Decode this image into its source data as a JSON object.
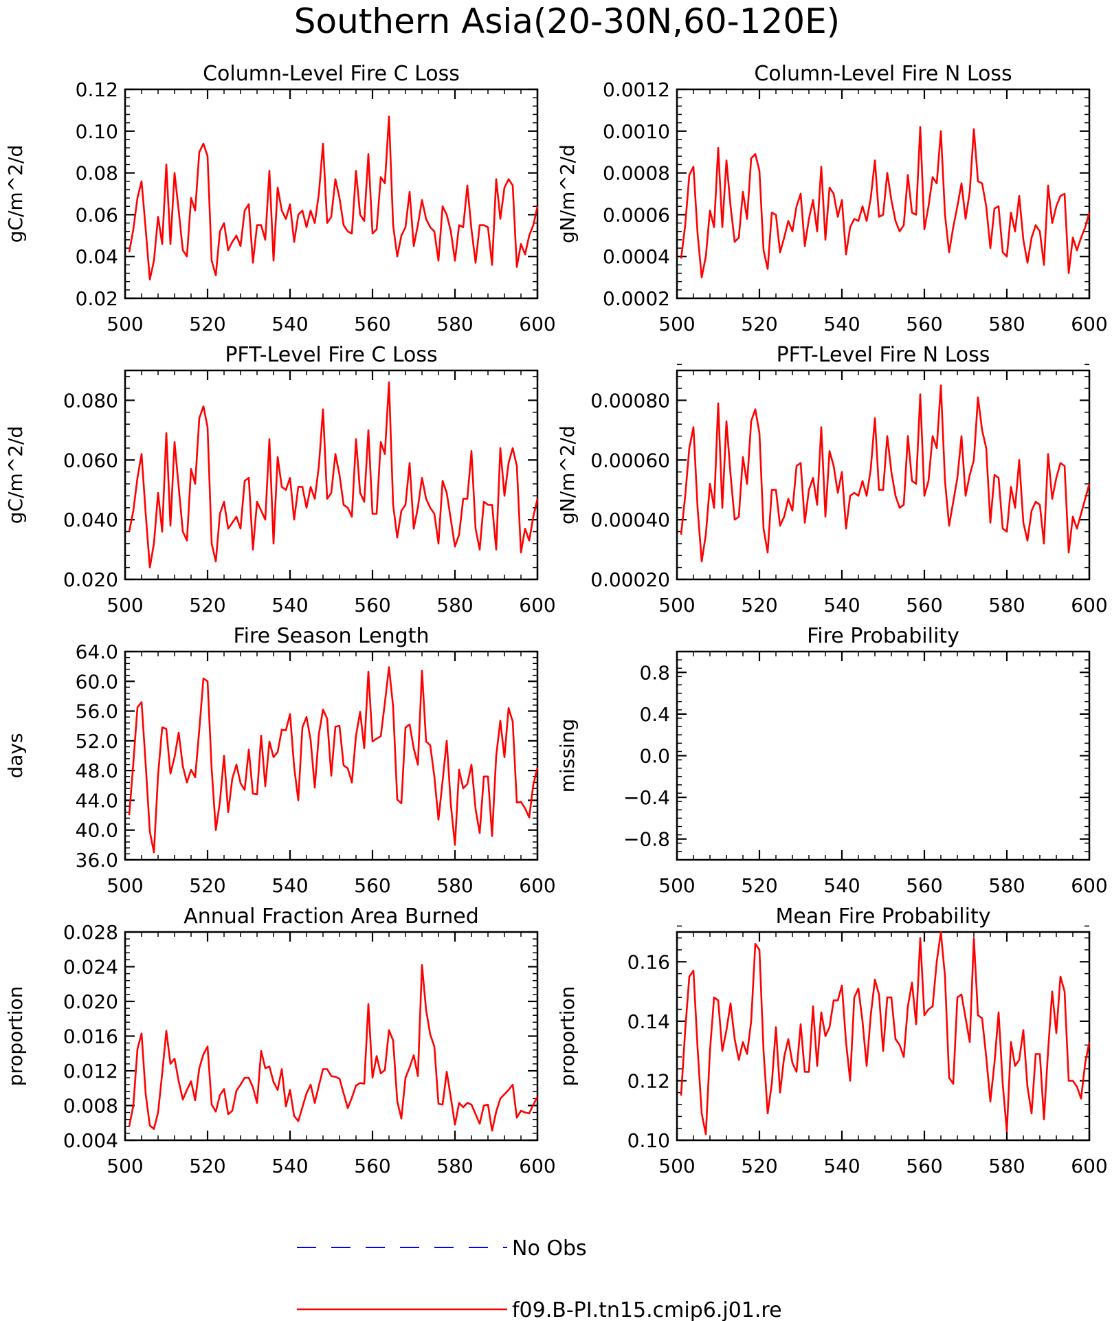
{
  "title": "Southern Asia(20-30N,60-120E)",
  "legend": [
    {
      "label": "No Obs",
      "color": "#0000ff",
      "style": "dashed"
    },
    {
      "label": "f09.B-PI.tn15.cmip6.j01.re",
      "color": "#ff0000",
      "style": "solid"
    }
  ],
  "chart_data": [
    {
      "type": "line",
      "title": "Column-Level Fire C Loss",
      "ylabel": "gC/m^2/d",
      "xlabel": "",
      "xlim": [
        500,
        600
      ],
      "ylim": [
        0.02,
        0.12
      ],
      "xticks": [
        "500",
        "520",
        "540",
        "560",
        "580",
        "600"
      ],
      "yticks": [
        "0.02",
        "0.04",
        "0.06",
        "0.08",
        "0.10",
        "0.12"
      ],
      "series": [
        {
          "name": "f09.B-PI.tn15.cmip6.j01.re",
          "color": "#ff0000",
          "x_start": 501,
          "x_step": 1,
          "values": [
            0.042,
            0.053,
            0.068,
            0.076,
            0.053,
            0.029,
            0.038,
            0.059,
            0.046,
            0.084,
            0.046,
            0.08,
            0.062,
            0.043,
            0.04,
            0.068,
            0.062,
            0.09,
            0.094,
            0.088,
            0.038,
            0.031,
            0.052,
            0.056,
            0.043,
            0.047,
            0.05,
            0.045,
            0.062,
            0.065,
            0.037,
            0.055,
            0.055,
            0.048,
            0.081,
            0.038,
            0.073,
            0.062,
            0.058,
            0.065,
            0.047,
            0.06,
            0.062,
            0.054,
            0.062,
            0.056,
            0.07,
            0.094,
            0.056,
            0.059,
            0.077,
            0.068,
            0.055,
            0.052,
            0.051,
            0.081,
            0.06,
            0.057,
            0.089,
            0.051,
            0.053,
            0.078,
            0.075,
            0.107,
            0.055,
            0.04,
            0.05,
            0.054,
            0.071,
            0.045,
            0.055,
            0.067,
            0.058,
            0.054,
            0.052,
            0.038,
            0.064,
            0.06,
            0.052,
            0.038,
            0.055,
            0.054,
            0.074,
            0.053,
            0.037,
            0.055,
            0.055,
            0.054,
            0.036,
            0.077,
            0.058,
            0.073,
            0.077,
            0.074,
            0.035,
            0.046,
            0.041,
            0.05,
            0.055,
            0.064
          ]
        }
      ]
    },
    {
      "type": "line",
      "title": "Column-Level Fire N Loss",
      "ylabel": "gN/m^2/d",
      "xlabel": "",
      "xlim": [
        500,
        600
      ],
      "ylim": [
        0.0002,
        0.0012
      ],
      "xticks": [
        "500",
        "520",
        "540",
        "560",
        "580",
        "600"
      ],
      "yticks": [
        "0.0002",
        "0.0004",
        "0.0006",
        "0.0008",
        "0.0010",
        "0.0012"
      ],
      "series": [
        {
          "name": "f09.B-PI.tn15.cmip6.j01.re",
          "color": "#ff0000",
          "x_start": 501,
          "x_step": 1,
          "values": [
            0.00039,
            0.00055,
            0.00079,
            0.00083,
            0.00051,
            0.0003,
            0.0004,
            0.00062,
            0.00054,
            0.00092,
            0.00054,
            0.00086,
            0.00064,
            0.00047,
            0.00049,
            0.00071,
            0.00058,
            0.00087,
            0.00089,
            0.00081,
            0.00043,
            0.00034,
            0.00061,
            0.0006,
            0.00042,
            0.00049,
            0.00057,
            0.00052,
            0.00064,
            0.0007,
            0.00045,
            0.00058,
            0.00067,
            0.00052,
            0.00083,
            0.00048,
            0.00073,
            0.0007,
            0.00059,
            0.00067,
            0.00041,
            0.00054,
            0.00058,
            0.00057,
            0.00064,
            0.00057,
            0.00068,
            0.00086,
            0.00059,
            0.0006,
            0.0008,
            0.00067,
            0.00057,
            0.00052,
            0.00055,
            0.00079,
            0.00061,
            0.0006,
            0.00102,
            0.00053,
            0.00064,
            0.00078,
            0.00075,
            0.001,
            0.0006,
            0.00042,
            0.00054,
            0.00064,
            0.00075,
            0.00058,
            0.00071,
            0.00101,
            0.00076,
            0.00075,
            0.00064,
            0.00044,
            0.00063,
            0.00064,
            0.00042,
            0.0004,
            0.00061,
            0.00052,
            0.00069,
            0.00048,
            0.00037,
            0.00049,
            0.00055,
            0.00052,
            0.00036,
            0.00074,
            0.00056,
            0.00064,
            0.00069,
            0.0007,
            0.00032,
            0.00049,
            0.00043,
            0.00049,
            0.00054,
            0.00061
          ]
        }
      ]
    },
    {
      "type": "line",
      "title": "PFT-Level Fire C Loss",
      "ylabel": "gC/m^2/d",
      "xlabel": "",
      "xlim": [
        500,
        600
      ],
      "ylim": [
        0.02,
        0.09
      ],
      "xticks": [
        "500",
        "520",
        "540",
        "560",
        "580",
        "600"
      ],
      "yticks": [
        "0.020",
        "0.040",
        "0.060",
        "0.080"
      ],
      "series": [
        {
          "name": "f09.B-PI.tn15.cmip6.j01.re",
          "color": "#ff0000",
          "x_start": 501,
          "x_step": 1,
          "values": [
            0.036,
            0.043,
            0.054,
            0.062,
            0.042,
            0.024,
            0.032,
            0.049,
            0.036,
            0.069,
            0.038,
            0.066,
            0.051,
            0.036,
            0.033,
            0.057,
            0.052,
            0.074,
            0.078,
            0.071,
            0.032,
            0.026,
            0.042,
            0.046,
            0.037,
            0.039,
            0.041,
            0.037,
            0.053,
            0.054,
            0.03,
            0.046,
            0.043,
            0.04,
            0.067,
            0.032,
            0.061,
            0.051,
            0.05,
            0.054,
            0.04,
            0.051,
            0.051,
            0.044,
            0.051,
            0.047,
            0.058,
            0.077,
            0.047,
            0.049,
            0.062,
            0.055,
            0.045,
            0.044,
            0.041,
            0.067,
            0.049,
            0.046,
            0.07,
            0.042,
            0.042,
            0.066,
            0.062,
            0.086,
            0.045,
            0.034,
            0.043,
            0.045,
            0.059,
            0.037,
            0.044,
            0.054,
            0.047,
            0.044,
            0.042,
            0.032,
            0.053,
            0.049,
            0.04,
            0.031,
            0.035,
            0.047,
            0.047,
            0.063,
            0.037,
            0.03,
            0.046,
            0.045,
            0.045,
            0.03,
            0.064,
            0.048,
            0.059,
            0.064,
            0.058,
            0.029,
            0.037,
            0.033,
            0.041,
            0.047
          ]
        }
      ]
    },
    {
      "type": "line",
      "title": "PFT-Level Fire N Loss",
      "ylabel": "gN/m^2/d",
      "xlabel": "",
      "xlim": [
        500,
        600
      ],
      "ylim": [
        0.0002,
        0.0009
      ],
      "xticks": [
        "500",
        "520",
        "540",
        "560",
        "580",
        "600"
      ],
      "yticks": [
        "0.00020",
        "0.00040",
        "0.00060",
        "0.00080"
      ],
      "series": [
        {
          "name": "f09.B-PI.tn15.cmip6.j01.re",
          "color": "#ff0000",
          "x_start": 501,
          "x_step": 1,
          "values": [
            0.00035,
            0.00048,
            0.00064,
            0.00071,
            0.00044,
            0.00026,
            0.00035,
            0.00052,
            0.00044,
            0.00079,
            0.00044,
            0.00073,
            0.00055,
            0.0004,
            0.00041,
            0.00061,
            0.00052,
            0.00073,
            0.00077,
            0.00069,
            0.00037,
            0.00029,
            0.0005,
            0.0005,
            0.00038,
            0.00041,
            0.00047,
            0.00043,
            0.00058,
            0.00059,
            0.00039,
            0.0005,
            0.00054,
            0.00045,
            0.00071,
            0.00041,
            0.00063,
            0.00058,
            0.00049,
            0.00056,
            0.00037,
            0.00048,
            0.00049,
            0.00048,
            0.00053,
            0.00048,
            0.00057,
            0.00074,
            0.0005,
            0.0005,
            0.00068,
            0.00056,
            0.00048,
            0.00044,
            0.00045,
            0.00068,
            0.00053,
            0.00052,
            0.00082,
            0.00048,
            0.00053,
            0.00068,
            0.00064,
            0.00085,
            0.00053,
            0.00038,
            0.00046,
            0.00054,
            0.00068,
            0.00048,
            0.00055,
            0.0006,
            0.00081,
            0.0007,
            0.00064,
            0.00039,
            0.00055,
            0.00054,
            0.00037,
            0.00036,
            0.00051,
            0.00044,
            0.0006,
            0.00039,
            0.00033,
            0.00043,
            0.00046,
            0.00045,
            0.00032,
            0.00062,
            0.00047,
            0.00054,
            0.00059,
            0.00058,
            0.00029,
            0.00041,
            0.00037,
            0.00042,
            0.00047,
            0.00052
          ]
        }
      ]
    },
    {
      "type": "line",
      "title": "Fire Season Length",
      "ylabel": "days",
      "xlabel": "",
      "xlim": [
        500,
        600
      ],
      "ylim": [
        36,
        64
      ],
      "xticks": [
        "500",
        "520",
        "540",
        "560",
        "580",
        "600"
      ],
      "yticks": [
        "36.0",
        "40.0",
        "44.0",
        "48.0",
        "52.0",
        "56.0",
        "60.0",
        "64.0"
      ],
      "series": [
        {
          "name": "f09.B-PI.tn15.cmip6.j01.re",
          "color": "#ff0000",
          "x_start": 501,
          "x_step": 1,
          "values": [
            42,
            49,
            56.5,
            57.2,
            48.8,
            39.8,
            37,
            47.4,
            53.8,
            53.6,
            47.6,
            49.8,
            53.1,
            48.6,
            46.4,
            48.1,
            47.1,
            53.5,
            60.4,
            60,
            48.2,
            40,
            43.8,
            50,
            42.4,
            46.9,
            48.8,
            46.3,
            45.4,
            50.8,
            44.9,
            44.8,
            52.7,
            45.9,
            51.9,
            49.8,
            50.5,
            53.5,
            53.4,
            55.6,
            48.5,
            44,
            53.8,
            55.2,
            52.1,
            45.7,
            52.9,
            56.2,
            55,
            47.3,
            53.9,
            54,
            48.7,
            48.3,
            46.4,
            52.7,
            55.9,
            51,
            61.3,
            51.9,
            52.3,
            52.6,
            57.1,
            61.9,
            56.6,
            44.1,
            43.6,
            53.8,
            54.2,
            51,
            48.8,
            61.4,
            51.9,
            51.4,
            47.2,
            41.4,
            46.6,
            52,
            43.4,
            38,
            48.1,
            45.6,
            46.2,
            48.8,
            42.8,
            39.6,
            47.2,
            47.2,
            39.2,
            50,
            54.7,
            49.8,
            56.4,
            54.6,
            43.7,
            43.8,
            42.9,
            41.7,
            46.1,
            48.4
          ]
        }
      ]
    },
    {
      "type": "line",
      "title": "Fire Probability",
      "ylabel": "missing",
      "xlabel": "",
      "xlim": [
        500,
        600
      ],
      "ylim": [
        -1,
        1
      ],
      "xticks": [
        "500",
        "520",
        "540",
        "560",
        "580",
        "600"
      ],
      "yticks": [
        "−0.8",
        "−0.4",
        "0.0",
        "0.4",
        "0.8"
      ],
      "series": []
    },
    {
      "type": "line",
      "title": "Annual Fraction Area Burned",
      "ylabel": "proportion",
      "xlabel": "",
      "xlim": [
        500,
        600
      ],
      "ylim": [
        0.004,
        0.028
      ],
      "xticks": [
        "500",
        "520",
        "540",
        "560",
        "580",
        "600"
      ],
      "yticks": [
        "0.004",
        "0.008",
        "0.012",
        "0.016",
        "0.020",
        "0.024",
        "0.028"
      ],
      "series": [
        {
          "name": "f09.B-PI.tn15.cmip6.j01.re",
          "color": "#ff0000",
          "x_start": 501,
          "x_step": 1,
          "values": [
            0.0056,
            0.008,
            0.0145,
            0.0163,
            0.0093,
            0.0057,
            0.0053,
            0.0072,
            0.0117,
            0.0166,
            0.0128,
            0.0134,
            0.0108,
            0.0087,
            0.0098,
            0.0108,
            0.0086,
            0.0123,
            0.0139,
            0.0148,
            0.0081,
            0.0073,
            0.0092,
            0.0099,
            0.007,
            0.0074,
            0.0097,
            0.0104,
            0.0112,
            0.0112,
            0.0101,
            0.0083,
            0.0143,
            0.0123,
            0.0125,
            0.0107,
            0.0098,
            0.0122,
            0.0079,
            0.0098,
            0.0068,
            0.0062,
            0.0078,
            0.0094,
            0.0104,
            0.0083,
            0.0103,
            0.0122,
            0.0122,
            0.0114,
            0.0113,
            0.0111,
            0.0094,
            0.0077,
            0.0089,
            0.0103,
            0.0106,
            0.0105,
            0.0197,
            0.0112,
            0.0137,
            0.0117,
            0.0121,
            0.0167,
            0.0155,
            0.0085,
            0.0065,
            0.0112,
            0.0124,
            0.0138,
            0.0114,
            0.0242,
            0.019,
            0.0162,
            0.0148,
            0.0082,
            0.0081,
            0.0119,
            0.0089,
            0.0058,
            0.0083,
            0.0078,
            0.0083,
            0.0081,
            0.007,
            0.0059,
            0.008,
            0.0081,
            0.0051,
            0.0073,
            0.0088,
            0.0093,
            0.0098,
            0.0104,
            0.0066,
            0.0074,
            0.0072,
            0.0071,
            0.0081,
            0.009
          ]
        }
      ]
    },
    {
      "type": "line",
      "title": "Mean Fire Probability",
      "ylabel": "proportion",
      "xlabel": "",
      "xlim": [
        500,
        600
      ],
      "ylim": [
        0.1,
        0.17
      ],
      "xticks": [
        "500",
        "520",
        "540",
        "560",
        "580",
        "600"
      ],
      "yticks": [
        "0.10",
        "0.12",
        "0.14",
        "0.16"
      ],
      "series": [
        {
          "name": "f09.B-PI.tn15.cmip6.j01.re",
          "color": "#ff0000",
          "x_start": 501,
          "x_step": 1,
          "values": [
            0.115,
            0.137,
            0.155,
            0.157,
            0.131,
            0.109,
            0.102,
            0.13,
            0.148,
            0.147,
            0.13,
            0.137,
            0.146,
            0.134,
            0.127,
            0.133,
            0.129,
            0.14,
            0.166,
            0.164,
            0.13,
            0.109,
            0.119,
            0.138,
            0.116,
            0.128,
            0.134,
            0.126,
            0.123,
            0.139,
            0.123,
            0.123,
            0.145,
            0.125,
            0.143,
            0.135,
            0.138,
            0.147,
            0.147,
            0.152,
            0.133,
            0.12,
            0.148,
            0.151,
            0.14,
            0.125,
            0.142,
            0.154,
            0.149,
            0.13,
            0.148,
            0.148,
            0.134,
            0.132,
            0.128,
            0.145,
            0.153,
            0.139,
            0.168,
            0.142,
            0.144,
            0.145,
            0.16,
            0.17,
            0.155,
            0.121,
            0.119,
            0.148,
            0.149,
            0.141,
            0.133,
            0.168,
            0.142,
            0.141,
            0.128,
            0.113,
            0.126,
            0.143,
            0.119,
            0.103,
            0.133,
            0.125,
            0.127,
            0.137,
            0.118,
            0.109,
            0.129,
            0.129,
            0.107,
            0.13,
            0.15,
            0.136,
            0.155,
            0.15,
            0.12,
            0.12,
            0.118,
            0.114,
            0.126,
            0.133
          ]
        }
      ]
    }
  ]
}
